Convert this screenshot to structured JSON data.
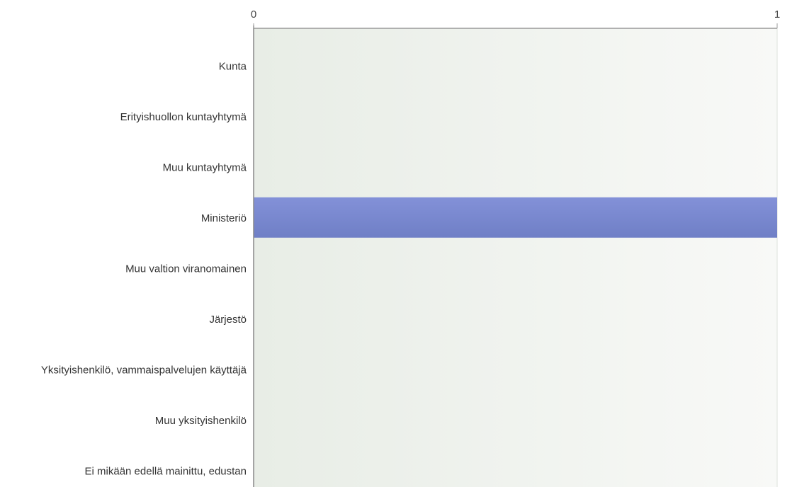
{
  "chart_data": {
    "type": "bar",
    "orientation": "horizontal",
    "categories": [
      "Kunta",
      "Erityishuollon kuntayhtymä",
      "Muu kuntayhtymä",
      "Ministeriö",
      "Muu valtion viranomainen",
      "Järjestö",
      "Yksityishenkilö, vammaispalvelujen käyttäjä",
      "Muu yksityishenkilö",
      "Ei mikään edellä mainittu, edustan"
    ],
    "values": [
      0,
      0,
      0,
      1,
      0,
      0,
      0,
      0,
      0
    ],
    "xticks": [
      "0",
      "1"
    ],
    "xlim": [
      0,
      1
    ],
    "title": "",
    "xlabel": "",
    "ylabel": "",
    "grid": true,
    "bar_color": "#7b8ad1"
  }
}
